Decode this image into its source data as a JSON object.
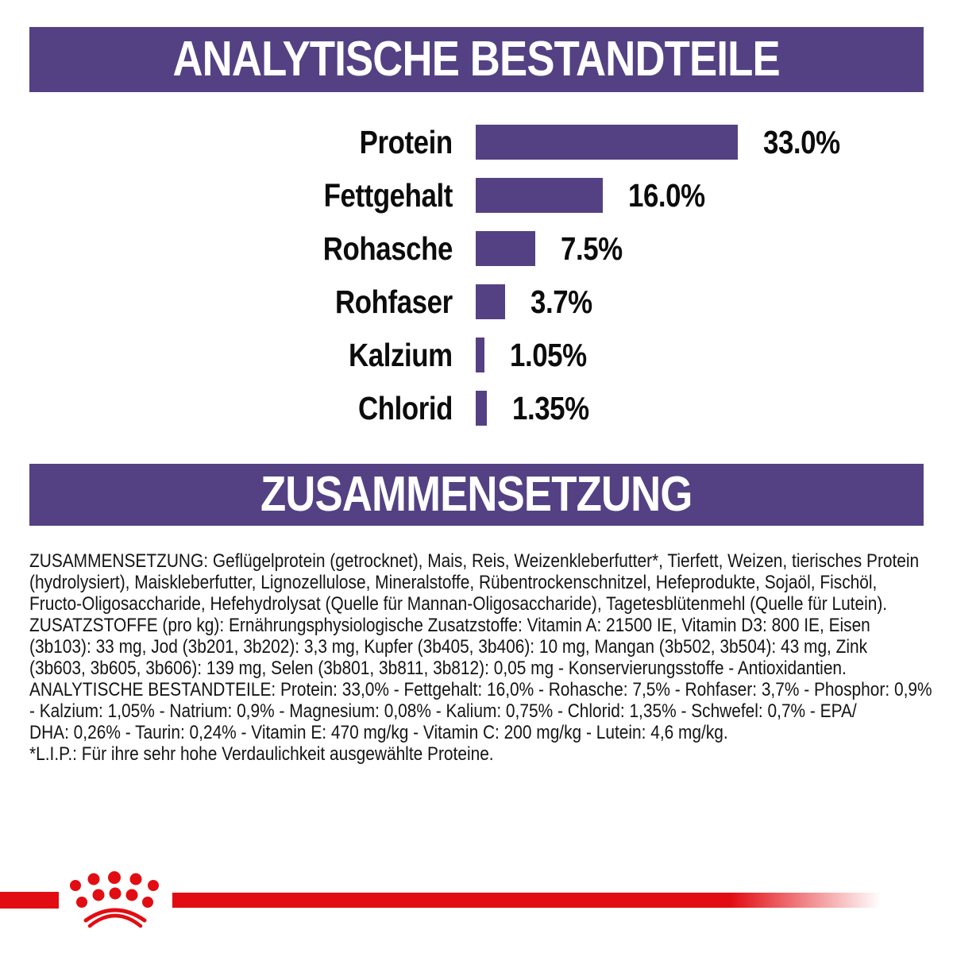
{
  "page": {
    "background": "#ffffff",
    "accent_purple": "#544183",
    "accent_red": "#e20d13",
    "text_color": "#151515"
  },
  "analytics_banner": {
    "title": "ANALYTISCHE BESTANDTEILE"
  },
  "chart_data": {
    "type": "bar",
    "orientation": "horizontal",
    "title": "ANALYTISCHE BESTANDTEILE",
    "categories": [
      "Protein",
      "Fettgehalt",
      "Rohasche",
      "Rohfaser",
      "Kalzium",
      "Chlorid"
    ],
    "values": [
      33.0,
      16.0,
      7.5,
      3.7,
      1.05,
      1.35
    ],
    "value_labels": [
      "33.0%",
      "16.0%",
      "7.5%",
      "3.7%",
      "1.05%",
      "1.35%"
    ],
    "unit": "%",
    "xlim": [
      0,
      33
    ],
    "bar_color": "#544183",
    "grid": false,
    "legend": "none",
    "value_label_position": "right-of-bar"
  },
  "composition_banner": {
    "title": "ZUSAMMENSETZUNG"
  },
  "composition": {
    "lines": [
      "ZUSAMMENSETZUNG: Geflügelprotein (getrocknet), Mais, Reis, Weizenkleberfutter*, Tierfett, Weizen, tierisches Protein",
      "(hydrolysiert), Maiskleberfutter, Lignozellulose, Mineralstoffe, Rübentrockenschnitzel, Hefeprodukte, Sojaöl, Fischöl,",
      "Fructo-Oligosaccharide, Hefehydrolysat (Quelle für Mannan-Oligosaccharide), Tagetesblütenmehl (Quelle für Lutein).",
      "ZUSATZSTOFFE (pro kg): Ernährungsphysiologische Zusatzstoffe: Vitamin A: 21500 IE, Vitamin D3: 800 IE, Eisen",
      "(3b103): 33 mg, Jod (3b201, 3b202): 3,3 mg, Kupfer (3b405, 3b406): 10 mg, Mangan (3b502, 3b504): 43 mg, Zink",
      "(3b603, 3b605, 3b606): 139 mg, Selen (3b801, 3b811, 3b812): 0,05 mg - Konservierungsstoffe - Antioxidantien.",
      "ANALYTISCHE BESTANDTEILE: Protein: 33,0% - Fettgehalt: 16,0% - Rohasche: 7,5% - Rohfaser: 3,7% - Phosphor: 0,9%",
      "- Kalzium: 1,05% - Natrium: 0,9% - Magnesium: 0,08% - Kalium: 0,75% - Chlorid: 1,35% - Schwefel: 0,7% - EPA/",
      "DHA: 0,26% - Taurin: 0,24% - Vitamin E: 470 mg/kg - Vitamin C: 200 mg/kg - Lutein: 4,6 mg/kg.",
      "*L.I.P.: Für ihre sehr hohe Verdaulichkeit ausgewählte Proteine."
    ]
  },
  "footer": {
    "logo_icon": "royal-canin-crown-icon",
    "line_color": "#e20d13"
  }
}
